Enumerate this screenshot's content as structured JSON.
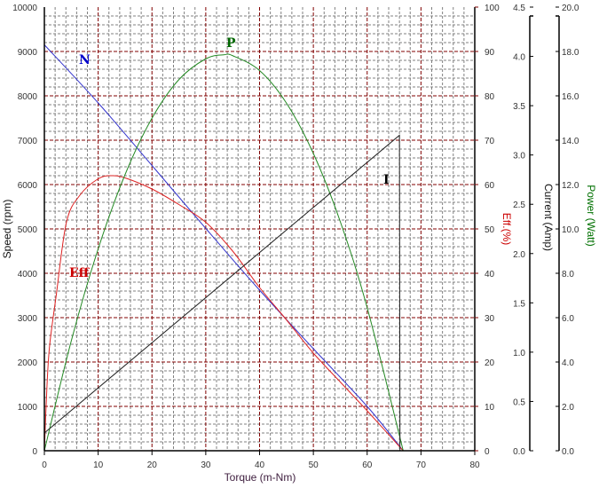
{
  "chart_data": {
    "type": "line",
    "xlabel": "Torque (m-Nm)",
    "xlim": [
      0,
      80
    ],
    "xticks": [
      "0",
      "10",
      "20",
      "30",
      "40",
      "50",
      "60",
      "70",
      "80"
    ],
    "grid": true,
    "axes": {
      "speed": {
        "label": "Speed (rpm)",
        "lim": [
          0,
          10000
        ],
        "ticks": [
          "0",
          "1000",
          "2000",
          "3000",
          "4000",
          "5000",
          "6000",
          "7000",
          "8000",
          "9000",
          "10000"
        ],
        "side": "left"
      },
      "eff": {
        "label": "Eff.(%)",
        "lim": [
          0,
          100
        ],
        "ticks": [
          "0",
          "10",
          "20",
          "30",
          "40",
          "50",
          "60",
          "70",
          "80",
          "90",
          "100"
        ],
        "side": "right",
        "color": "#cc0000"
      },
      "current": {
        "label": "Current (Amp)",
        "lim": [
          0,
          4.5
        ],
        "ticks": [
          "0.0",
          "0.5",
          "1.0",
          "1.5",
          "2.0",
          "2.5",
          "3.0",
          "3.5",
          "4.0",
          "4.5"
        ],
        "side": "right"
      },
      "power": {
        "label": "Power (Watt)",
        "lim": [
          0,
          20
        ],
        "ticks": [
          "0.0",
          "2.0",
          "4.0",
          "6.0",
          "8.0",
          "10.0",
          "12.0",
          "14.0",
          "16.0",
          "18.0",
          "20.0"
        ],
        "side": "right",
        "color": "#007000"
      }
    },
    "series": [
      {
        "name": "N",
        "axis": "speed",
        "color": "#3333cc",
        "x": [
          0,
          10,
          20,
          30,
          40,
          50,
          60,
          66.7
        ],
        "y": [
          9150,
          7840,
          6430,
          5010,
          3620,
          2300,
          1000,
          0
        ]
      },
      {
        "name": "Eff",
        "axis": "eff",
        "color": "#dd2222",
        "x": [
          0,
          0.5,
          1,
          2.2,
          4.1,
          6.6,
          10,
          12.4,
          15,
          20,
          25,
          30,
          35,
          40,
          45,
          50,
          55,
          60,
          66.7
        ],
        "y": [
          0,
          15,
          24,
          35,
          51.5,
          57.6,
          61.3,
          62,
          61.5,
          59,
          55.5,
          51.5,
          45,
          36.8,
          29.5,
          22,
          15.5,
          9,
          0
        ]
      },
      {
        "name": "P",
        "axis": "power",
        "color": "#228822",
        "x": [
          0,
          5,
          10,
          15,
          20,
          25,
          30,
          33.35,
          35,
          40,
          45,
          50,
          55,
          60,
          66.7
        ],
        "y": [
          0,
          4.95,
          9.1,
          12.45,
          14.99,
          16.73,
          17.67,
          17.85,
          17.81,
          17.14,
          15.67,
          13.4,
          10.33,
          6.45,
          0
        ]
      },
      {
        "name": "I",
        "axis": "current",
        "color": "#222222",
        "x": [
          0,
          66,
          66.1
        ],
        "y": [
          0.18,
          3.2,
          0
        ]
      }
    ]
  }
}
